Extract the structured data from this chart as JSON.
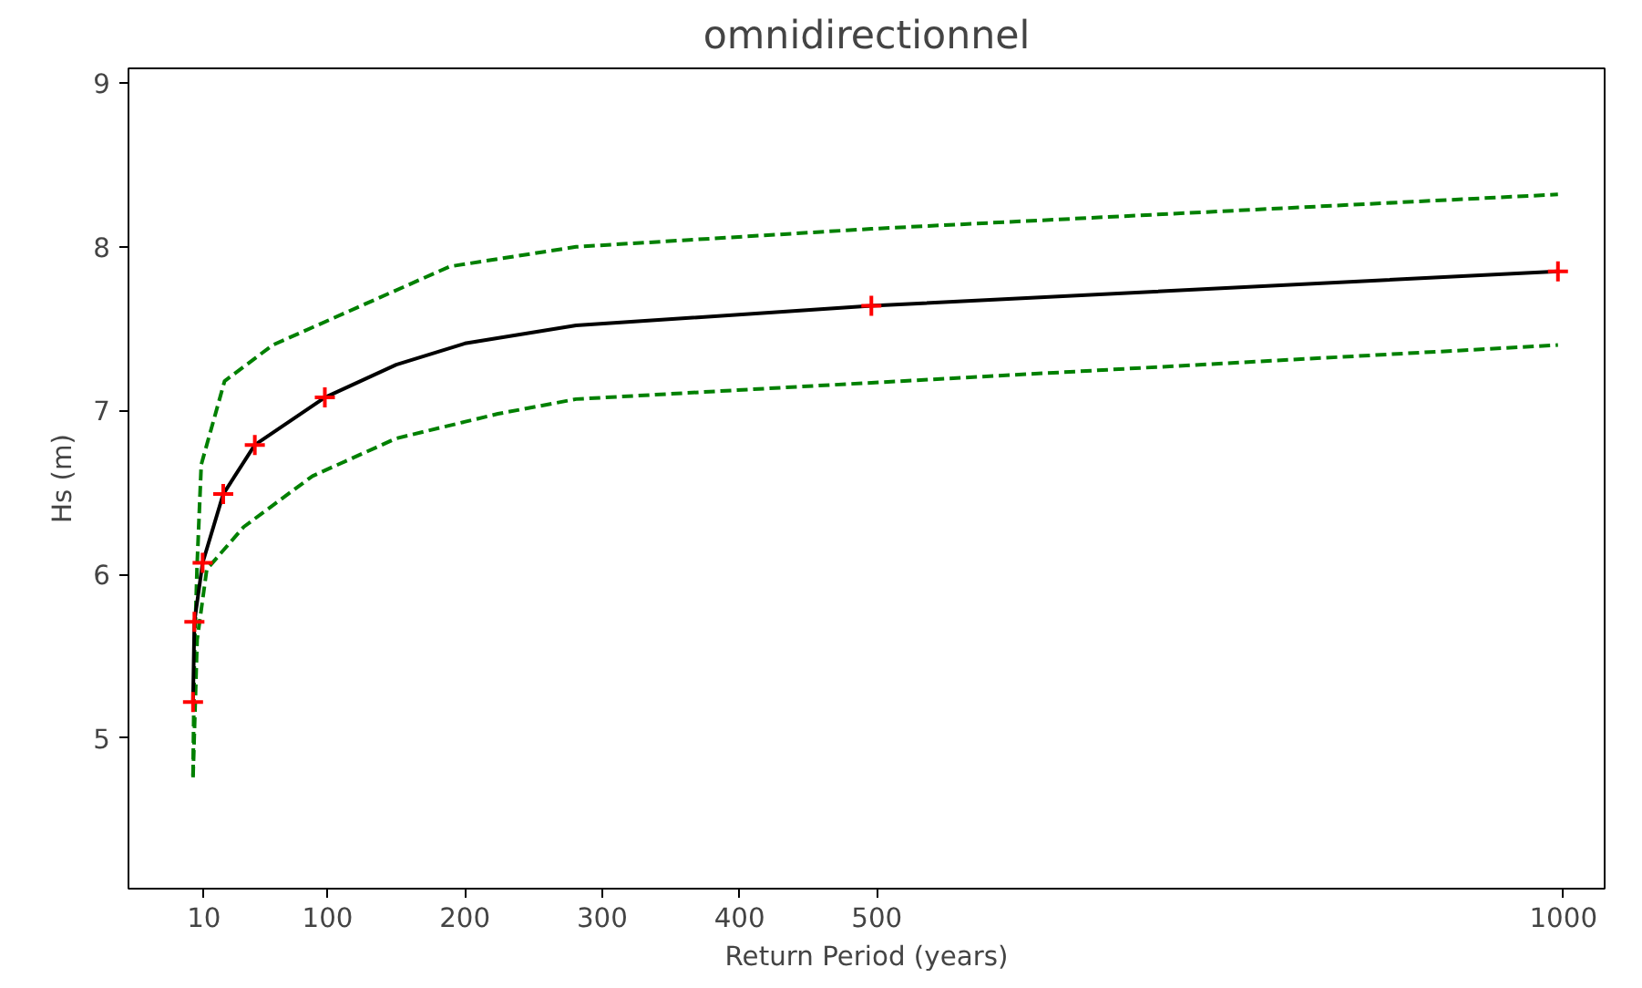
{
  "chart_data": {
    "type": "line",
    "title": "omnidirectionnel",
    "xlabel": "Return Period (years)",
    "ylabel": "Hs (m)",
    "xlim": [
      -45,
      1030
    ],
    "ylim": [
      4.08,
      9.09
    ],
    "xticks": [
      10,
      100,
      200,
      300,
      400,
      500,
      1000
    ],
    "yticks": [
      5,
      6,
      7,
      8,
      9
    ],
    "grid": false,
    "series": [
      {
        "color": "#008000",
        "line_style": "dashed",
        "x": [
          2,
          3,
          5,
          8,
          25,
          60,
          103,
          189,
          281,
          496,
          996
        ],
        "values": [
          4.77,
          5.5,
          6.06,
          6.67,
          7.18,
          7.4,
          7.56,
          7.88,
          8.0,
          8.11,
          8.32
        ]
      },
      {
        "color": "#008000",
        "line_style": "dashed",
        "x": [
          2,
          5,
          12,
          39,
          89,
          150,
          224,
          281,
          496,
          996
        ],
        "values": [
          4.76,
          5.6,
          6.03,
          6.29,
          6.6,
          6.83,
          6.98,
          7.07,
          7.17,
          7.4
        ]
      },
      {
        "color": "#000000",
        "line_style": "solid",
        "x": [
          2,
          3,
          9,
          24,
          47,
          98,
          150,
          200,
          281,
          496,
          996
        ],
        "values": [
          5.22,
          5.71,
          6.07,
          6.49,
          6.79,
          7.08,
          7.28,
          7.41,
          7.52,
          7.64,
          7.85
        ]
      },
      {
        "type": "scatter",
        "color": "#ff0000",
        "marker": "cross",
        "x": [
          2,
          3,
          9,
          24,
          47,
          98,
          496,
          996
        ],
        "values": [
          5.22,
          5.71,
          6.07,
          6.49,
          6.79,
          7.08,
          7.64,
          7.85
        ]
      }
    ]
  }
}
